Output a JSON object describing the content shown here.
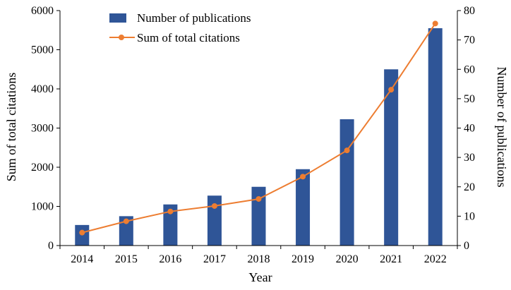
{
  "chart_data": {
    "type": "bar+line",
    "categories": [
      "2014",
      "2015",
      "2016",
      "2017",
      "2018",
      "2019",
      "2020",
      "2021",
      "2022"
    ],
    "series": [
      {
        "name": "Number of publications",
        "type": "bar",
        "axis": "right",
        "color": "#2f5597",
        "values": [
          7,
          10,
          14,
          17,
          20,
          26,
          43,
          60,
          74
        ]
      },
      {
        "name": "Sum of total citations",
        "type": "line",
        "axis": "left",
        "color": "#ed7d31",
        "values": [
          330,
          620,
          870,
          1010,
          1190,
          1760,
          2430,
          3980,
          5670
        ]
      }
    ],
    "xlabel": "Year",
    "ylabel_left": "Sum of total citations",
    "ylabel_right": "Number of publications",
    "ylim_left": [
      0,
      6000
    ],
    "ylim_right": [
      0,
      80
    ],
    "yticks_left": [
      "0",
      "1000",
      "2000",
      "3000",
      "4000",
      "5000",
      "6000"
    ],
    "yticks_right": [
      "0",
      "10",
      "20",
      "30",
      "40",
      "50",
      "60",
      "70",
      "80"
    ],
    "legend": "top-left",
    "grid": false
  }
}
